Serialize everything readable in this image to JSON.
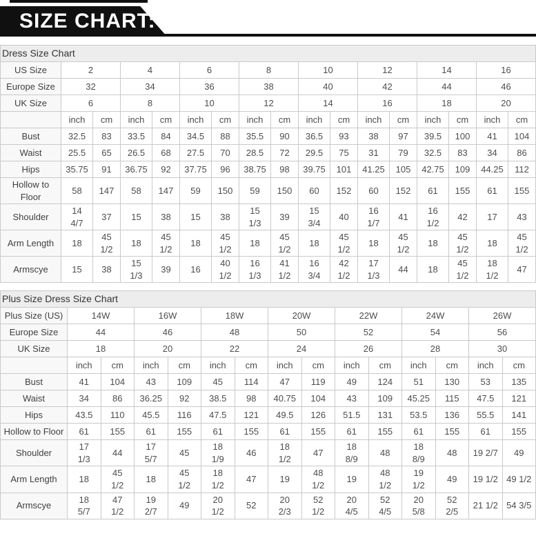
{
  "banner": {
    "title": "SIZE CHART:",
    "bg_color": "#101010",
    "text_color": "#ffffff"
  },
  "units": [
    "inch",
    "cm"
  ],
  "tables": [
    {
      "name": "dress-size-chart",
      "title": "Dress Size Chart",
      "size_rows": [
        {
          "label": "US Size",
          "values": [
            "2",
            "4",
            "6",
            "8",
            "10",
            "12",
            "14",
            "16"
          ]
        },
        {
          "label": "Europe Size",
          "values": [
            "32",
            "34",
            "36",
            "38",
            "40",
            "42",
            "44",
            "46"
          ]
        },
        {
          "label": "UK Size",
          "values": [
            "6",
            "8",
            "10",
            "12",
            "14",
            "16",
            "18",
            "20"
          ]
        }
      ],
      "unit_labels": [
        "inch",
        "cm"
      ],
      "measure_rows": [
        {
          "label": "Bust",
          "values": [
            "32.5",
            "83",
            "33.5",
            "84",
            "34.5",
            "88",
            "35.5",
            "90",
            "36.5",
            "93",
            "38",
            "97",
            "39.5",
            "100",
            "41",
            "104"
          ]
        },
        {
          "label": "Waist",
          "values": [
            "25.5",
            "65",
            "26.5",
            "68",
            "27.5",
            "70",
            "28.5",
            "72",
            "29.5",
            "75",
            "31",
            "79",
            "32.5",
            "83",
            "34",
            "86"
          ]
        },
        {
          "label": "Hips",
          "values": [
            "35.75",
            "91",
            "36.75",
            "92",
            "37.75",
            "96",
            "38.75",
            "98",
            "39.75",
            "101",
            "41.25",
            "105",
            "42.75",
            "109",
            "44.25",
            "112"
          ]
        },
        {
          "label": "Hollow to Floor",
          "values": [
            "58",
            "147",
            "58",
            "147",
            "59",
            "150",
            "59",
            "150",
            "60",
            "152",
            "60",
            "152",
            "61",
            "155",
            "61",
            "155"
          ]
        },
        {
          "label": "Shoulder",
          "values": [
            "14\n4/7",
            "37",
            "15",
            "38",
            "15",
            "38",
            "15\n1/3",
            "39",
            "15\n3/4",
            "40",
            "16\n1/7",
            "41",
            "16\n1/2",
            "42",
            "17",
            "43"
          ]
        },
        {
          "label": "Arm Length",
          "values": [
            "18",
            "45\n1/2",
            "18",
            "45\n1/2",
            "18",
            "45\n1/2",
            "18",
            "45\n1/2",
            "18",
            "45\n1/2",
            "18",
            "45\n1/2",
            "18",
            "45\n1/2",
            "18",
            "45\n1/2"
          ]
        },
        {
          "label": "Armscye",
          "values": [
            "15",
            "38",
            "15\n1/3",
            "39",
            "16",
            "40\n1/2",
            "16\n1/3",
            "41\n1/2",
            "16\n3/4",
            "42\n1/2",
            "17\n1/3",
            "44",
            "18",
            "45\n1/2",
            "18\n1/2",
            "47"
          ]
        }
      ]
    },
    {
      "name": "plus-size-dress-size-chart",
      "title": "Plus Size Dress Size Chart",
      "size_rows": [
        {
          "label": "Plus Size (US)",
          "values": [
            "14W",
            "16W",
            "18W",
            "20W",
            "22W",
            "24W",
            "26W"
          ]
        },
        {
          "label": "Europe Size",
          "values": [
            "44",
            "46",
            "48",
            "50",
            "52",
            "54",
            "56"
          ]
        },
        {
          "label": "UK Size",
          "values": [
            "18",
            "20",
            "22",
            "24",
            "26",
            "28",
            "30"
          ]
        }
      ],
      "unit_labels": [
        "inch",
        "cm"
      ],
      "measure_rows": [
        {
          "label": "Bust",
          "values": [
            "41",
            "104",
            "43",
            "109",
            "45",
            "114",
            "47",
            "119",
            "49",
            "124",
            "51",
            "130",
            "53",
            "135"
          ]
        },
        {
          "label": "Waist",
          "values": [
            "34",
            "86",
            "36.25",
            "92",
            "38.5",
            "98",
            "40.75",
            "104",
            "43",
            "109",
            "45.25",
            "115",
            "47.5",
            "121"
          ]
        },
        {
          "label": "Hips",
          "values": [
            "43.5",
            "110",
            "45.5",
            "116",
            "47.5",
            "121",
            "49.5",
            "126",
            "51.5",
            "131",
            "53.5",
            "136",
            "55.5",
            "141"
          ]
        },
        {
          "label": "Hollow to Floor",
          "values": [
            "61",
            "155",
            "61",
            "155",
            "61",
            "155",
            "61",
            "155",
            "61",
            "155",
            "61",
            "155",
            "61",
            "155"
          ]
        },
        {
          "label": "Shoulder",
          "values": [
            "17\n1/3",
            "44",
            "17\n5/7",
            "45",
            "18\n1/9",
            "46",
            "18\n1/2",
            "47",
            "18\n8/9",
            "48",
            "18\n8/9",
            "48",
            "19 2/7",
            "49"
          ]
        },
        {
          "label": "Arm Length",
          "values": [
            "18",
            "45\n1/2",
            "18",
            "45\n1/2",
            "18\n1/2",
            "47",
            "19",
            "48\n1/2",
            "19",
            "48\n1/2",
            "19\n1/2",
            "49",
            "19 1/2",
            "49 1/2"
          ]
        },
        {
          "label": "Armscye",
          "values": [
            "18\n5/7",
            "47\n1/2",
            "19\n2/7",
            "49",
            "20\n1/2",
            "52",
            "20\n2/3",
            "52\n1/2",
            "20\n4/5",
            "52\n4/5",
            "20\n5/8",
            "52\n2/5",
            "21 1/2",
            "54 3/5"
          ]
        }
      ]
    }
  ]
}
